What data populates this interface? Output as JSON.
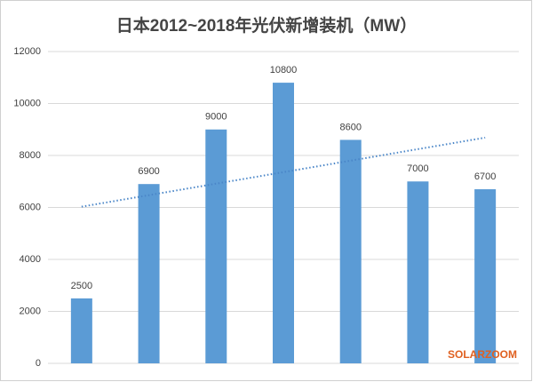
{
  "chart_data": {
    "type": "bar",
    "title": "日本2012~2018年光伏新增装机（MW）",
    "categories": [
      null,
      null,
      null,
      null,
      null,
      null,
      null
    ],
    "values": [
      2500,
      6900,
      9000,
      10800,
      8600,
      7000,
      6700
    ],
    "color": "#5b9bd5",
    "ylim": [
      0,
      12000
    ],
    "yticks": [
      0,
      2000,
      4000,
      6000,
      8000,
      10000,
      12000
    ],
    "grid": true,
    "trendline": {
      "values": [
        6029,
        8686
      ],
      "color": "#4a86c8"
    },
    "watermark": "SOLARZOOM"
  }
}
